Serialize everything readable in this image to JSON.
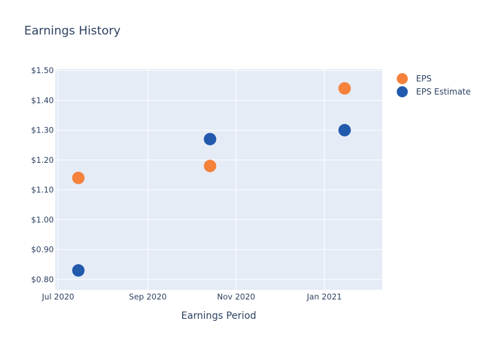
{
  "chart_data": {
    "type": "scatter",
    "title": "Earnings History",
    "xlabel": "Earnings Period",
    "ylabel": "",
    "x_ticks": [
      {
        "date": "2020-07-01",
        "label": "Jul 2020"
      },
      {
        "date": "2020-09-01",
        "label": "Sep 2020"
      },
      {
        "date": "2020-11-01",
        "label": "Nov 2020"
      },
      {
        "date": "2021-01-01",
        "label": "Jan 2021"
      }
    ],
    "xlim": [
      "2020-06-29",
      "2021-02-10"
    ],
    "y_ticks": [
      {
        "value": 0.8,
        "label": "$0.80"
      },
      {
        "value": 0.9,
        "label": "$0.90"
      },
      {
        "value": 1.0,
        "label": "$1.00"
      },
      {
        "value": 1.1,
        "label": "$1.10"
      },
      {
        "value": 1.2,
        "label": "$1.20"
      },
      {
        "value": 1.3,
        "label": "$1.30"
      },
      {
        "value": 1.4,
        "label": "$1.40"
      },
      {
        "value": 1.5,
        "label": "$1.50"
      }
    ],
    "ylim": [
      0.765,
      1.505
    ],
    "grid": true,
    "legend_position": "top-right",
    "series": [
      {
        "name": "EPS",
        "color": "#f5813a",
        "points": [
          {
            "x": "2020-07-15",
            "y": 1.14
          },
          {
            "x": "2020-10-14",
            "y": 1.18
          },
          {
            "x": "2021-01-15",
            "y": 1.44
          }
        ]
      },
      {
        "name": "EPS Estimate",
        "color": "#2159ad",
        "points": [
          {
            "x": "2020-07-15",
            "y": 0.83
          },
          {
            "x": "2020-10-14",
            "y": 1.27
          },
          {
            "x": "2021-01-15",
            "y": 1.3
          }
        ]
      }
    ]
  },
  "colors": {
    "plot_background": "#e5ecf6",
    "grid": "#ffffff",
    "text": "#2a3f5f"
  }
}
